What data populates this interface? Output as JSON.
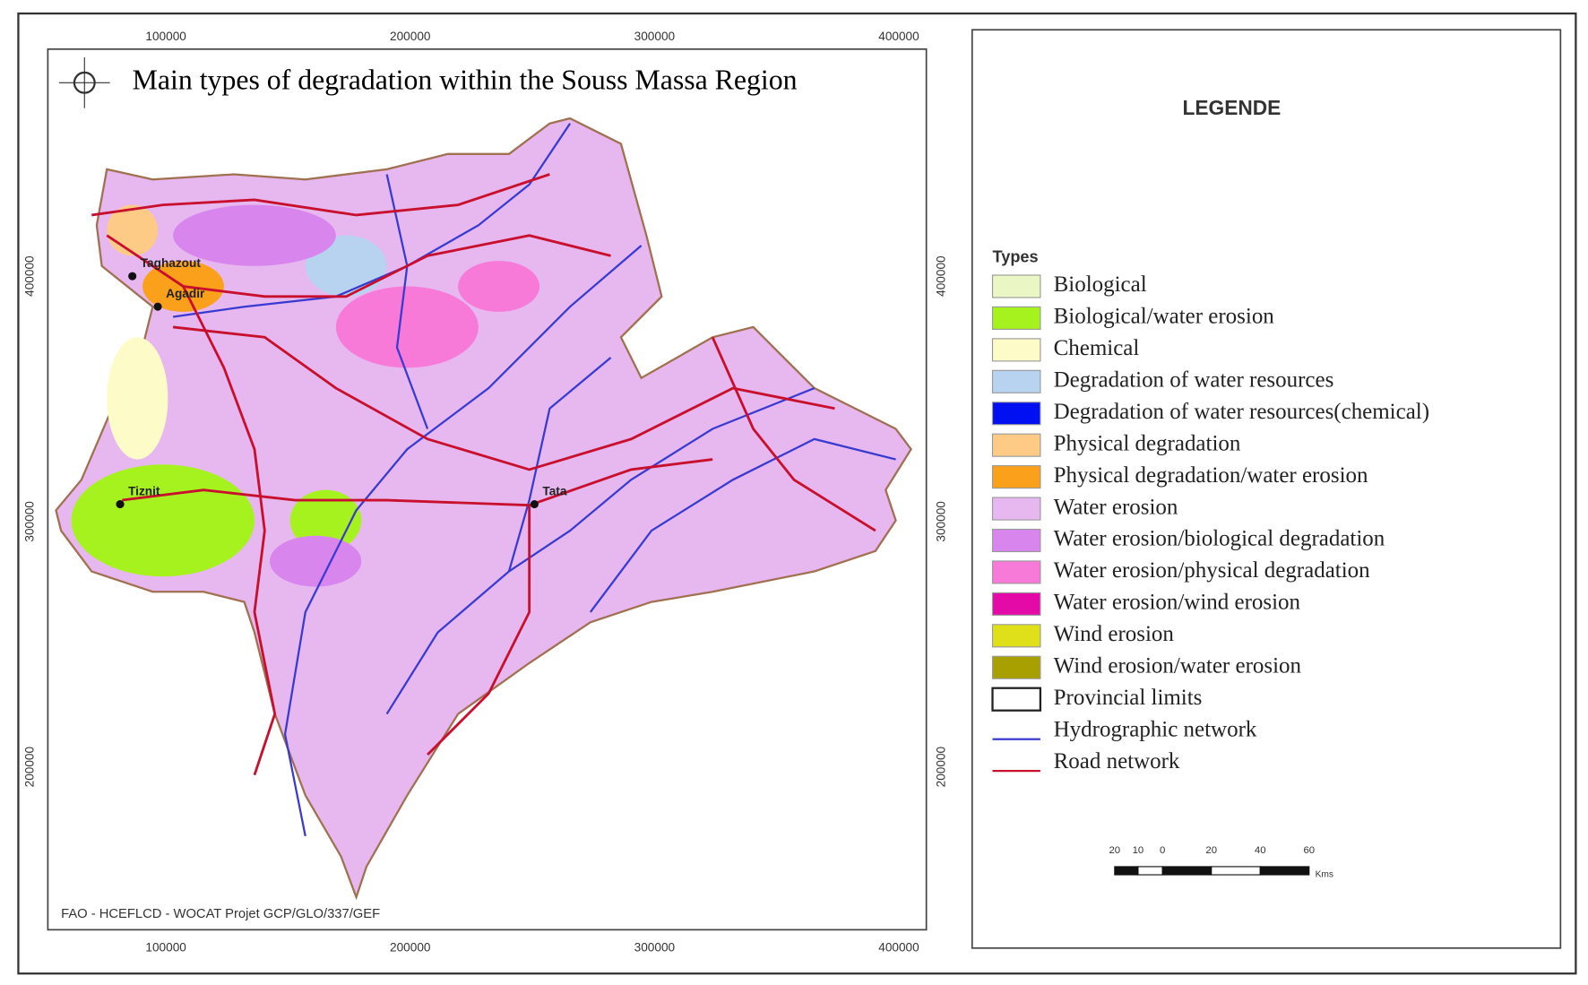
{
  "map": {
    "title": "Main types of degradation within the Souss Massa Region",
    "credit": "FAO - HCEFLCD - WOCAT Projet GCP/GLO/337/GEF",
    "x_labels": [
      "100000",
      "200000",
      "300000",
      "400000"
    ],
    "y_labels": [
      "400000",
      "300000",
      "200000"
    ],
    "places": [
      "Taghazout",
      "Agadir",
      "Tiznit",
      "Tata"
    ]
  },
  "legend": {
    "title": "LEGENDE",
    "subtitle": "Types",
    "items": [
      {
        "label": "Biological",
        "color": "#eaf7c5",
        "symbol": "fill"
      },
      {
        "label": "Biological/water erosion",
        "color": "#a6f21f",
        "symbol": "fill"
      },
      {
        "label": "Chemical",
        "color": "#fdfbc8",
        "symbol": "fill"
      },
      {
        "label": "Degradation of water resources",
        "color": "#b8d3f0",
        "symbol": "fill"
      },
      {
        "label": "Degradation of water resources(chemical)",
        "color": "#0010f0",
        "symbol": "fill"
      },
      {
        "label": "Physical degradation",
        "color": "#fdcb86",
        "symbol": "fill"
      },
      {
        "label": "Physical degradation/water erosion",
        "color": "#fba01a",
        "symbol": "fill"
      },
      {
        "label": "Water erosion",
        "color": "#e6b8ef",
        "symbol": "fill"
      },
      {
        "label": "Water erosion/biological degradation",
        "color": "#d985ee",
        "symbol": "fill"
      },
      {
        "label": "Water erosion/physical degradation",
        "color": "#f77ad9",
        "symbol": "fill"
      },
      {
        "label": "Water erosion/wind erosion",
        "color": "#e40aa8",
        "symbol": "fill"
      },
      {
        "label": "Wind erosion",
        "color": "#e0e01a",
        "symbol": "fill"
      },
      {
        "label": "Wind erosion/water erosion",
        "color": "#a8a000",
        "symbol": "fill"
      },
      {
        "label": "Provincial limits",
        "color": "#ffffff",
        "symbol": "outline"
      },
      {
        "label": "Hydrographic network",
        "color": "#3a3ad0",
        "symbol": "line"
      },
      {
        "label": "Road network",
        "color": "#c8102e",
        "symbol": "line"
      }
    ],
    "scale_labels": [
      "20",
      "10",
      "0",
      "20",
      "40",
      "60"
    ],
    "scale_unit": "Kms"
  }
}
